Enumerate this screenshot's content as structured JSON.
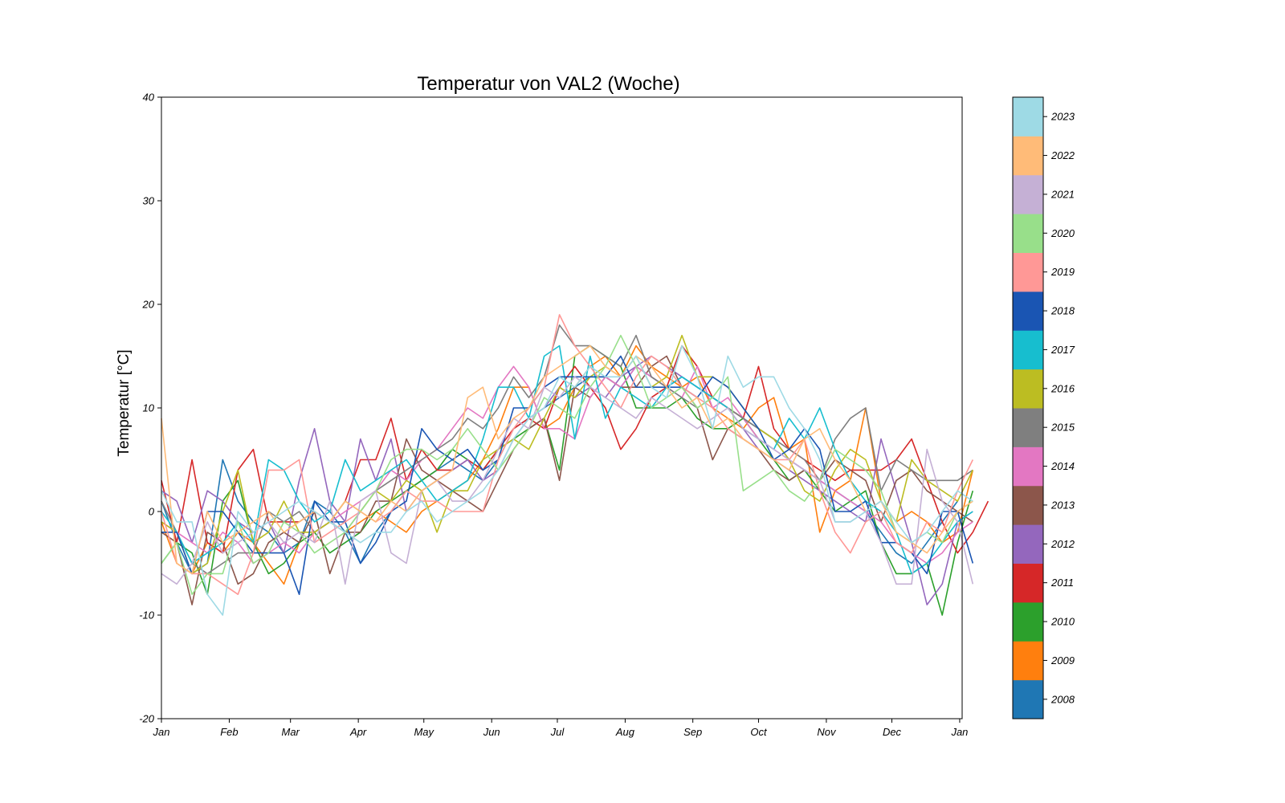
{
  "chart_data": {
    "type": "line",
    "title": "Temperatur von VAL2 (Woche)",
    "xlabel": "",
    "ylabel": "Temperatur [°C]",
    "ylim": [
      -20,
      40
    ],
    "yticks": [
      -20,
      -10,
      0,
      10,
      20,
      30,
      40
    ],
    "ytick_labels": [
      "-20",
      "-10",
      "0",
      "10",
      "20",
      "30",
      "40"
    ],
    "xlim": [
      1,
      53.3
    ],
    "x_unit": "week of year",
    "xticks": [
      {
        "label": "Jan",
        "week": 1
      },
      {
        "label": "Feb",
        "week": 5.43
      },
      {
        "label": "Mar",
        "week": 9.43
      },
      {
        "label": "Apr",
        "week": 13.86
      },
      {
        "label": "May",
        "week": 18.14
      },
      {
        "label": "Jun",
        "week": 22.57
      },
      {
        "label": "Jul",
        "week": 26.86
      },
      {
        "label": "Aug",
        "week": 31.29
      },
      {
        "label": "Sep",
        "week": 35.71
      },
      {
        "label": "Oct",
        "week": 40
      },
      {
        "label": "Nov",
        "week": 44.43
      },
      {
        "label": "Dec",
        "week": 48.71
      },
      {
        "label": "Jan",
        "week": 53.14
      }
    ],
    "grid": false,
    "legend": "colorbar-right",
    "series": [
      {
        "name": "2008",
        "color": "#1f77b4",
        "values": [
          1,
          -3,
          -6,
          -5,
          5,
          1,
          -1,
          -2,
          -4,
          -3,
          1,
          0,
          -2,
          -5,
          -2,
          0,
          2,
          3,
          4,
          5,
          4,
          3,
          5,
          8,
          9,
          10,
          11,
          12,
          13,
          13,
          12,
          14,
          13,
          12,
          13,
          12,
          11,
          10,
          9,
          8,
          7,
          5,
          4,
          3,
          2,
          1,
          0,
          -2,
          -4,
          -5,
          -3,
          -1,
          1
        ]
      },
      {
        "name": "2009",
        "color": "#ff7f0e",
        "values": [
          -1,
          -5,
          -6,
          -3,
          -4,
          -2,
          -3,
          -5,
          -7,
          -3,
          -2,
          -1,
          -2,
          -1,
          0,
          -1,
          -2,
          0,
          1,
          2,
          3,
          5,
          8,
          12,
          12,
          8,
          9,
          12,
          14,
          15,
          13,
          16,
          14,
          13,
          12,
          13,
          10,
          9,
          8,
          10,
          11,
          6,
          7,
          -2,
          2,
          3,
          10,
          1,
          -1,
          0,
          -1,
          -3,
          -2,
          4
        ]
      },
      {
        "name": "2010",
        "color": "#2ca02c",
        "values": [
          -5,
          -3,
          -4,
          -8,
          1,
          3,
          -3,
          -6,
          -5,
          -3,
          -2,
          -4,
          -3,
          -2,
          0,
          1,
          2,
          3,
          4,
          6,
          5,
          4,
          6,
          7,
          8,
          9,
          4,
          15,
          16,
          15,
          14,
          10,
          10,
          10,
          11,
          9,
          8,
          8,
          9,
          7,
          5,
          3,
          4,
          2,
          0,
          1,
          2,
          -3,
          -6,
          -6,
          -5,
          -10,
          -3,
          2
        ]
      },
      {
        "name": "2011",
        "color": "#d62728",
        "values": [
          3,
          -3,
          5,
          -3,
          -4,
          4,
          6,
          -1,
          -1,
          -1,
          0,
          -1,
          1,
          5,
          5,
          9,
          3,
          6,
          4,
          4,
          5,
          4,
          6,
          8,
          9,
          8,
          12,
          14,
          12,
          10,
          6,
          8,
          11,
          12,
          16,
          14,
          11,
          10,
          9,
          14,
          8,
          6,
          5,
          4,
          3,
          4,
          4,
          4,
          5,
          7,
          3,
          -1,
          -4,
          -2,
          1
        ]
      },
      {
        "name": "2012",
        "color": "#9467bd",
        "values": [
          2,
          1,
          -3,
          2,
          1,
          -1,
          -2,
          -1,
          -4,
          3,
          8,
          1,
          -1,
          7,
          3,
          7,
          0,
          2,
          3,
          4,
          5,
          3,
          4,
          7,
          9,
          10,
          12,
          11,
          12,
          11,
          13,
          14,
          15,
          14,
          13,
          12,
          11,
          10,
          8,
          6,
          5,
          4,
          3,
          2,
          1,
          0,
          -1,
          7,
          2,
          -3,
          -9,
          -7,
          -1,
          0
        ]
      },
      {
        "name": "2013",
        "color": "#8c564b",
        "values": [
          -2,
          -3,
          -9,
          -2,
          -3,
          -7,
          -6,
          -3,
          -2,
          -3,
          0,
          -6,
          -2,
          -2,
          1,
          1,
          7,
          4,
          3,
          2,
          1,
          0,
          3,
          6,
          8,
          9,
          3,
          12,
          11,
          13,
          12,
          12,
          14,
          15,
          12,
          10,
          5,
          8,
          7,
          6,
          4,
          3,
          4,
          3,
          5,
          4,
          3,
          -1,
          3,
          4,
          2,
          1,
          0,
          -1
        ]
      },
      {
        "name": "2014",
        "color": "#e377c2",
        "values": [
          -1,
          -2,
          -3,
          -4,
          -2,
          -3,
          -5,
          -4,
          -3,
          -4,
          -2,
          -1,
          0,
          1,
          2,
          4,
          3,
          5,
          6,
          8,
          10,
          9,
          12,
          14,
          12,
          8,
          8,
          7,
          11,
          13,
          12,
          14,
          13,
          12,
          11,
          14,
          10,
          11,
          9,
          7,
          6,
          5,
          4,
          3,
          2,
          1,
          0,
          -1,
          -3,
          -4,
          -5,
          -4,
          -2,
          -1
        ]
      },
      {
        "name": "2015",
        "color": "#7f7f7f",
        "values": [
          1,
          -2,
          -5,
          -6,
          -5,
          -4,
          -4,
          0,
          -1,
          0,
          -2,
          -1,
          -2,
          0,
          2,
          3,
          4,
          5,
          6,
          7,
          9,
          8,
          10,
          13,
          11,
          13,
          18,
          16,
          16,
          15,
          14,
          17,
          13,
          12,
          11,
          10,
          11,
          10,
          9,
          8,
          7,
          6,
          5,
          3,
          7,
          9,
          10,
          2,
          5,
          4,
          3,
          3,
          3,
          4
        ]
      },
      {
        "name": "2016",
        "color": "#bcbd22",
        "values": [
          -1,
          -2,
          -6,
          -5,
          0,
          4,
          -3,
          -2,
          1,
          -2,
          -2,
          -1,
          1,
          0,
          2,
          1,
          3,
          2,
          -2,
          2,
          2,
          5,
          6,
          7,
          6,
          9,
          12,
          11,
          13,
          14,
          13,
          15,
          12,
          13,
          17,
          13,
          13,
          12,
          10,
          8,
          7,
          5,
          2,
          1,
          4,
          6,
          5,
          1,
          -1,
          5,
          3,
          2,
          1,
          4
        ]
      },
      {
        "name": "2017",
        "color": "#17becf",
        "values": [
          0,
          -2,
          -5,
          -4,
          -3,
          -1,
          -3,
          5,
          4,
          1,
          -1,
          0,
          5,
          2,
          3,
          4,
          5,
          3,
          1,
          2,
          3,
          7,
          12,
          12,
          9,
          15,
          16,
          7,
          15,
          9,
          12,
          11,
          10,
          12,
          13,
          12,
          11,
          10,
          8,
          7,
          6,
          9,
          7,
          10,
          6,
          3,
          1,
          0,
          -2,
          -6,
          -5,
          -3,
          -1,
          0
        ]
      },
      {
        "name": "2018",
        "color": "#1a55b3",
        "values": [
          -2,
          -2,
          -6,
          0,
          0,
          -2,
          -4,
          -4,
          -4,
          -8,
          1,
          -1,
          -1,
          -5,
          -3,
          0,
          1,
          8,
          6,
          5,
          6,
          4,
          5,
          10,
          10,
          12,
          13,
          13,
          13,
          13,
          15,
          12,
          12,
          12,
          12,
          11,
          13,
          12,
          10,
          8,
          5,
          6,
          8,
          6,
          0,
          0,
          1,
          -3,
          -3,
          -4,
          -6,
          0,
          0,
          -5
        ]
      },
      {
        "name": "2019",
        "color": "#ff9896",
        "values": [
          0,
          -5,
          -6,
          -6,
          -7,
          -8,
          -4,
          4,
          4,
          5,
          -3,
          -2,
          -1,
          0,
          -1,
          0,
          2,
          1,
          1,
          0,
          0,
          0,
          5,
          8,
          10,
          12,
          19,
          16,
          14,
          12,
          10,
          13,
          15,
          14,
          12,
          11,
          10,
          8,
          7,
          6,
          5,
          5,
          7,
          2,
          -2,
          -4,
          -1,
          0,
          -3,
          -4,
          -1,
          -2,
          2,
          5
        ]
      },
      {
        "name": "2020",
        "color": "#98df8a",
        "values": [
          -5,
          -3,
          -8,
          -6,
          -6,
          -1,
          -5,
          -4,
          -1,
          -2,
          -4,
          -3,
          -2,
          0,
          2,
          5,
          6,
          6,
          5,
          6,
          8,
          6,
          4,
          6,
          8,
          11,
          10,
          9,
          12,
          14,
          17,
          14,
          10,
          11,
          12,
          10,
          11,
          13,
          2,
          3,
          4,
          2,
          1,
          3,
          6,
          5,
          4,
          2,
          -2,
          -3,
          -2,
          -3,
          0,
          1
        ]
      },
      {
        "name": "2021",
        "color": "#c5b0d5",
        "values": [
          -6,
          -7,
          -5,
          -1,
          -4,
          -3,
          -2,
          -1,
          -3,
          -2,
          -3,
          1,
          -7,
          1,
          2,
          -4,
          -5,
          2,
          3,
          1,
          1,
          3,
          6,
          9,
          8,
          12,
          11,
          13,
          12,
          11,
          10,
          9,
          11,
          10,
          9,
          8,
          9,
          10,
          8,
          7,
          6,
          5,
          4,
          3,
          -1,
          -1,
          0,
          -3,
          -7,
          -7,
          6,
          1,
          -1,
          -7
        ]
      },
      {
        "name": "2022",
        "color": "#ffbb78",
        "values": [
          9,
          -5,
          -6,
          0,
          -3,
          -2,
          -1,
          0,
          -2,
          -1,
          0,
          -1,
          1,
          0,
          -1,
          1,
          0,
          2,
          3,
          4,
          11,
          12,
          7,
          9,
          10,
          13,
          14,
          15,
          16,
          14,
          13,
          15,
          14,
          12,
          10,
          11,
          8,
          9,
          7,
          6,
          5,
          4,
          7,
          8,
          5,
          3,
          0,
          1,
          -2,
          -3,
          -4,
          -2,
          0,
          1
        ]
      },
      {
        "name": "2023",
        "color": "#9edae5",
        "values": [
          2,
          -1,
          -1,
          -8,
          -10,
          0,
          -2,
          -1,
          0,
          1,
          0,
          -1,
          -2,
          -3,
          -2,
          -2,
          0,
          1,
          -1,
          0,
          1,
          2,
          4,
          7,
          9,
          10,
          13,
          12,
          14,
          13,
          13,
          15,
          12,
          11,
          16,
          13,
          8,
          15,
          12,
          13,
          13,
          10,
          8,
          5,
          -1,
          -1,
          0,
          1,
          -1,
          -3,
          -2,
          0,
          2,
          1
        ]
      }
    ]
  }
}
